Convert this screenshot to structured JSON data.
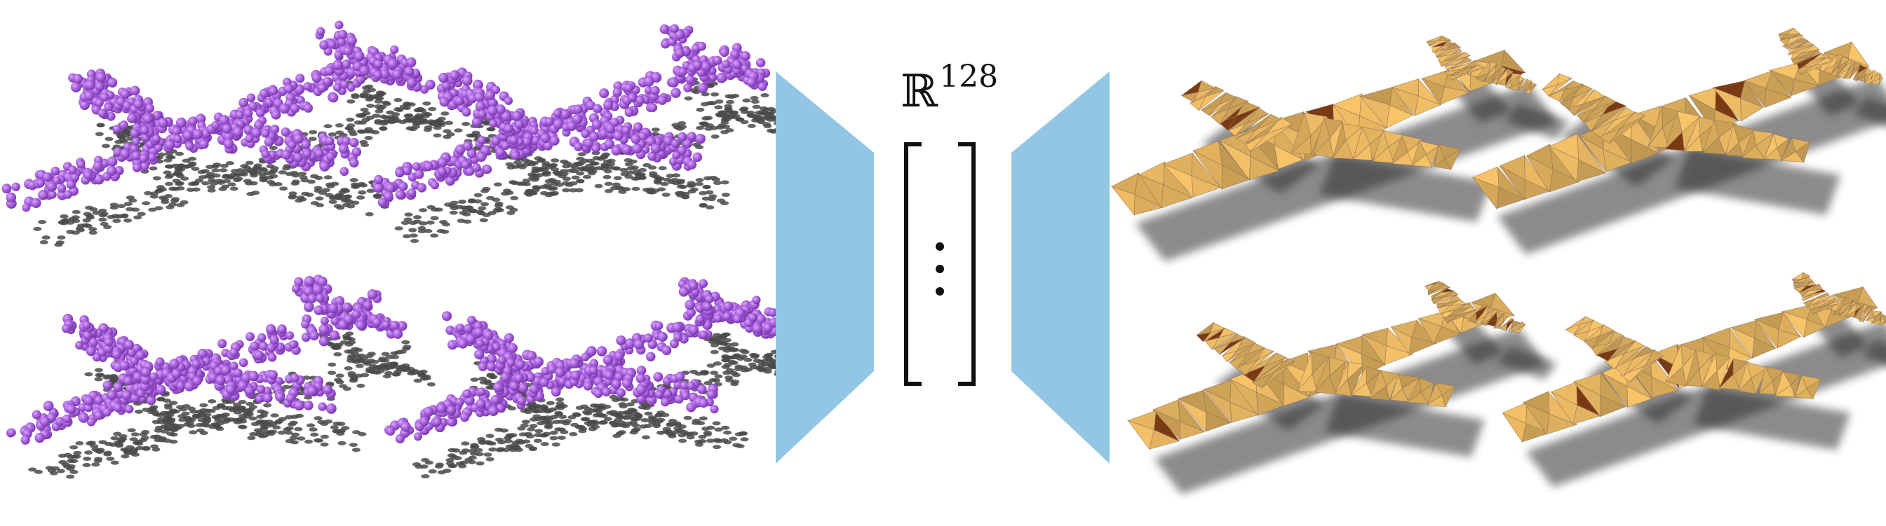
{
  "latent": {
    "symbol": "ℝ",
    "exponent": "128",
    "dots": "⋮"
  },
  "colors": {
    "points": "#a860dc",
    "points_shadow": "#4a4a4a",
    "network": "#93c6e4",
    "mesh": "#e9b862",
    "mesh_edge": "#8c6e58",
    "mesh_shadow": "#2f2f2f"
  },
  "groups": {
    "input": "input-point-clouds",
    "output": "output-meshes"
  }
}
